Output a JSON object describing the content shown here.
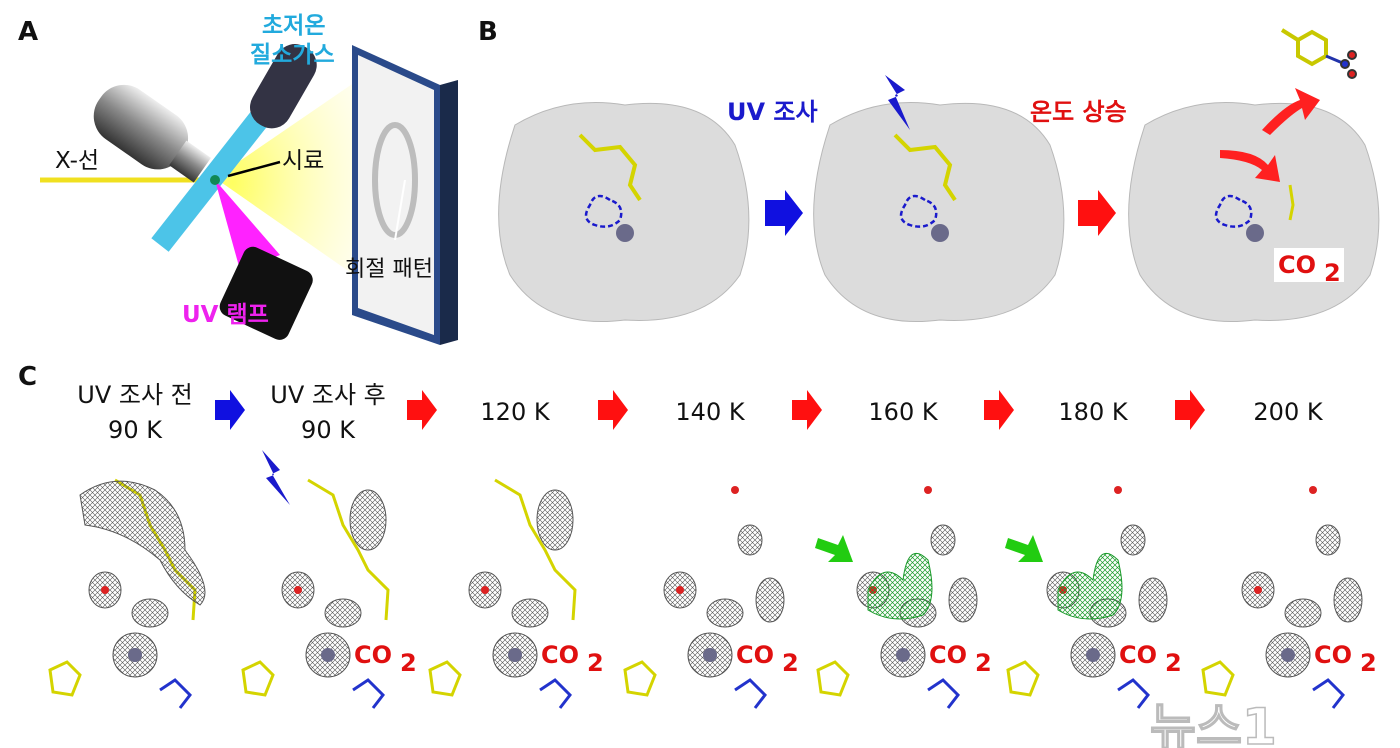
{
  "panels": {
    "a": {
      "label": "A",
      "nitrogen_gas": [
        "초저온",
        "질소가스"
      ],
      "xray": "X-선",
      "sample": "시료",
      "diffraction": "회절 패턴",
      "uv_lamp": "UV 램프"
    },
    "b": {
      "label": "B",
      "uv_irradiation": "UV 조사",
      "temp_rise": "온도 상승",
      "co2": "CO",
      "co2_sub": "2"
    },
    "c": {
      "label": "C",
      "steps": [
        {
          "line1": "UV 조사 전",
          "line2": "90 K"
        },
        {
          "line1": "UV 조사 후",
          "line2": "90 K"
        },
        {
          "line1": "120 K",
          "line2": ""
        },
        {
          "line1": "140 K",
          "line2": ""
        },
        {
          "line1": "160 K",
          "line2": ""
        },
        {
          "line1": "180 K",
          "line2": ""
        },
        {
          "line1": "200 K",
          "line2": ""
        }
      ],
      "co2": "CO",
      "co2_sub": "2"
    }
  },
  "watermark": "뉴스1",
  "colors": {
    "blue_arrow": "#1010e0",
    "red_arrow": "#ff1010",
    "green_arrow": "#22cc11",
    "cyan_text": "#22aadd",
    "magenta_text": "#ee22ee",
    "uv_text": "#1a1acc",
    "temp_text": "#e01010"
  }
}
